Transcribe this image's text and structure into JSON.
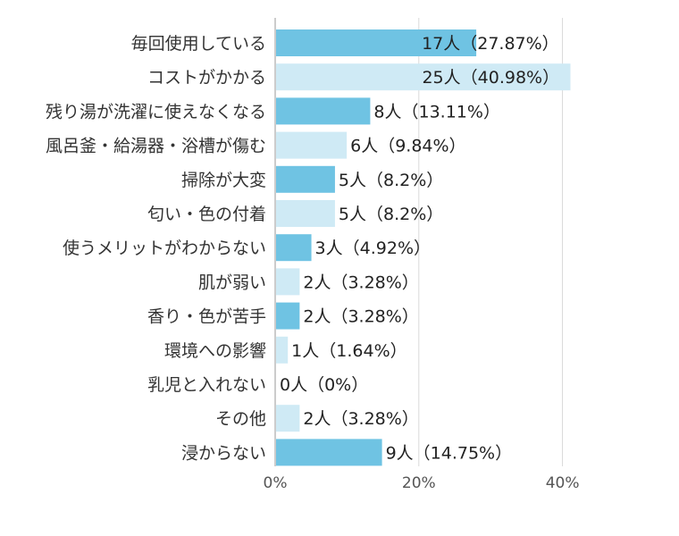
{
  "chart_data": {
    "type": "bar",
    "orientation": "horizontal",
    "title": "",
    "xlabel": "",
    "ylabel": "",
    "xlim": [
      0,
      45
    ],
    "ticks": [
      {
        "value": 0,
        "label": "0%"
      },
      {
        "value": 20,
        "label": "20%"
      },
      {
        "value": 40,
        "label": "40%"
      }
    ],
    "grid": true,
    "colors": {
      "odd": "#6fc3e3",
      "even": "#cfeaf5",
      "grid": "#d9d9d9",
      "axis": "#999999"
    },
    "categories": [
      "毎回使用している",
      "コストがかかる",
      "残り湯が洗濯に使えなくなる",
      "風呂釜・給湯器・浴槽が傷む",
      "掃除が大変",
      "匂い・色の付着",
      "使うメリットがわからない",
      "肌が弱い",
      "香り・色が苦手",
      "環境への影響",
      "乳児と入れない",
      "その他",
      "浸からない"
    ],
    "values": [
      27.87,
      40.98,
      13.11,
      9.84,
      8.2,
      8.2,
      4.92,
      3.28,
      3.28,
      1.64,
      0,
      3.28,
      14.75
    ],
    "counts": [
      17,
      25,
      8,
      6,
      5,
      5,
      3,
      2,
      2,
      1,
      0,
      2,
      9
    ],
    "data_labels": [
      "17人（27.87%）",
      "25人（40.98%）",
      "8人（13.11%）",
      "6人（9.84%）",
      "5人（8.2%）",
      "5人（8.2%）",
      "3人（4.92%）",
      "2人（3.28%）",
      "2人（3.28%）",
      "1人（1.64%）",
      "0人（0%）",
      "2人（3.28%）",
      "9人（14.75%）"
    ]
  }
}
